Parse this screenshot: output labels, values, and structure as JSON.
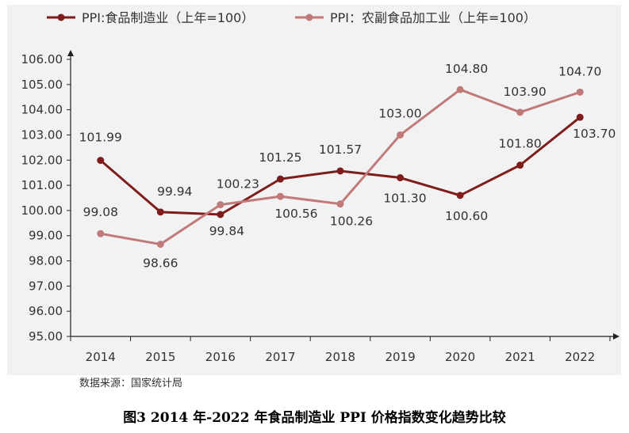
{
  "colors": {
    "series1": "#7f1d1d",
    "series2": "#c07a7a",
    "panel_bg": "#f2f2f2",
    "axis": "#222222"
  },
  "source_note": "数据来源：国家统计局",
  "figure_caption": "图3 2014 年-2022 年食品制造业 PPI 价格指数变化趋势比较",
  "chart_data": {
    "type": "line",
    "title": "",
    "xlabel": "",
    "ylabel": "",
    "categories": [
      "2014",
      "2015",
      "2016",
      "2017",
      "2018",
      "2019",
      "2020",
      "2021",
      "2022"
    ],
    "ylim": [
      95.0,
      106.0
    ],
    "ytick_step": 1,
    "ytick_labels": [
      "95.00",
      "96.00",
      "97.00",
      "98.00",
      "99.00",
      "100.00",
      "101.00",
      "102.00",
      "103.00",
      "104.00",
      "105.00",
      "106.00"
    ],
    "grid": false,
    "legend_position": "top",
    "series": [
      {
        "name": "PPI:食品制造业（上年=100）",
        "color": "#7f1d1d",
        "values": [
          101.99,
          99.94,
          99.84,
          101.25,
          101.57,
          101.3,
          100.6,
          101.8,
          103.7
        ],
        "labels": [
          "101.99",
          "99.94",
          "99.84",
          "101.25",
          "101.57",
          "101.30",
          "100.60",
          "101.80",
          "103.70"
        ]
      },
      {
        "name": "PPI：农副食品加工业（上年=100）",
        "color": "#c07a7a",
        "values": [
          99.08,
          98.66,
          100.23,
          100.56,
          100.26,
          103.0,
          104.8,
          103.9,
          104.7
        ],
        "labels": [
          "99.08",
          "98.66",
          "100.23",
          "100.56",
          "100.26",
          "103.00",
          "104.80",
          "103.90",
          "104.70"
        ]
      }
    ]
  }
}
